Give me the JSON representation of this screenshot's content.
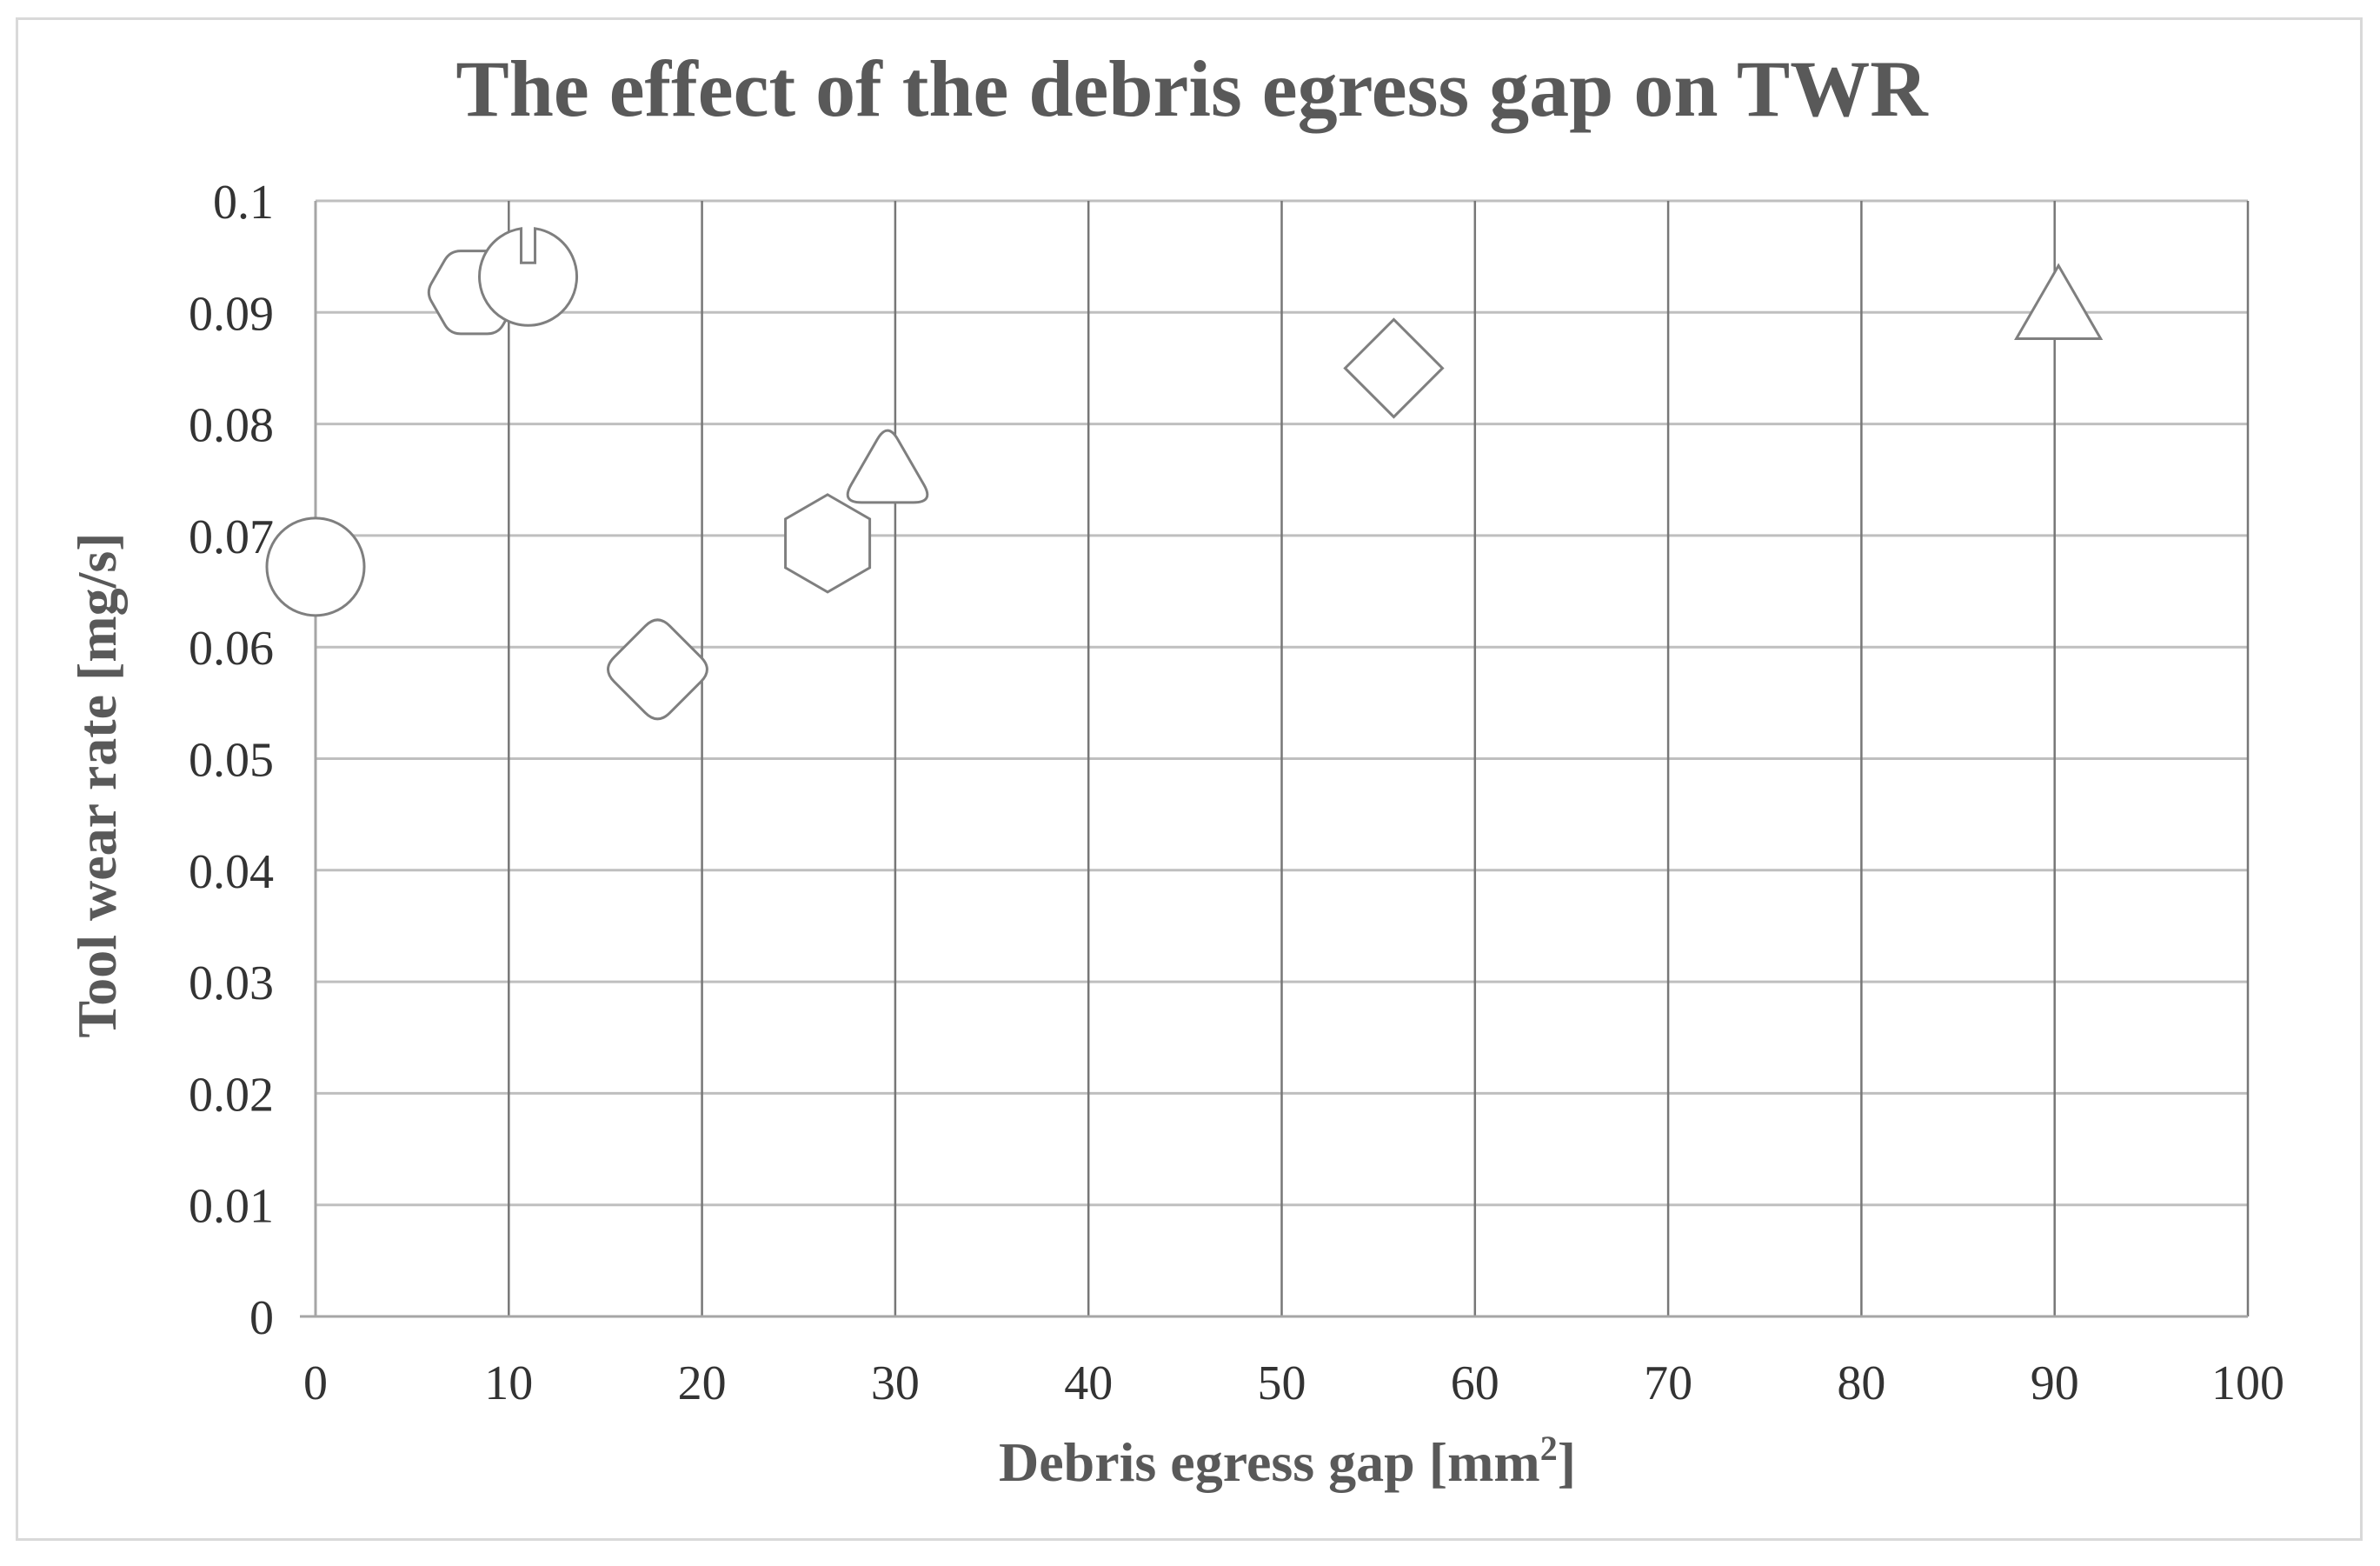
{
  "chart_data": {
    "type": "scatter",
    "title": "The effect of the debris egress gap on TWR",
    "xlabel": "Debris egress gap [mm",
    "xlabel_sup": "2",
    "xlabel_end": "]",
    "ylabel": "Tool wear rate  [mg/s]",
    "xlim": [
      0,
      100
    ],
    "ylim": [
      0,
      0.1
    ],
    "x_ticks": [
      "0",
      "10",
      "20",
      "30",
      "40",
      "50",
      "60",
      "70",
      "80",
      "90",
      "100"
    ],
    "y_ticks": [
      "0",
      "0.01",
      "0.02",
      "0.03",
      "0.04",
      "0.05",
      "0.06",
      "0.07",
      "0.08",
      "0.09",
      "0.1"
    ],
    "grid": true,
    "legend": "none",
    "points": [
      {
        "x": 0,
        "y": 0.0672,
        "marker": "circle"
      },
      {
        "x": 8.2,
        "y": 0.0918,
        "marker": "rounded-hexagon"
      },
      {
        "x": 11,
        "y": 0.0932,
        "marker": "notched-circle"
      },
      {
        "x": 17.7,
        "y": 0.058,
        "marker": "rounded-diamond"
      },
      {
        "x": 26.5,
        "y": 0.0693,
        "marker": "hexagon"
      },
      {
        "x": 29.6,
        "y": 0.076,
        "marker": "rounded-triangle"
      },
      {
        "x": 55.8,
        "y": 0.085,
        "marker": "diamond"
      },
      {
        "x": 90.2,
        "y": 0.0903,
        "marker": "triangle"
      }
    ],
    "colors": {
      "marker_stroke": "#7f7f7f",
      "text": "#595959",
      "grid": "#bfbfbf"
    }
  }
}
